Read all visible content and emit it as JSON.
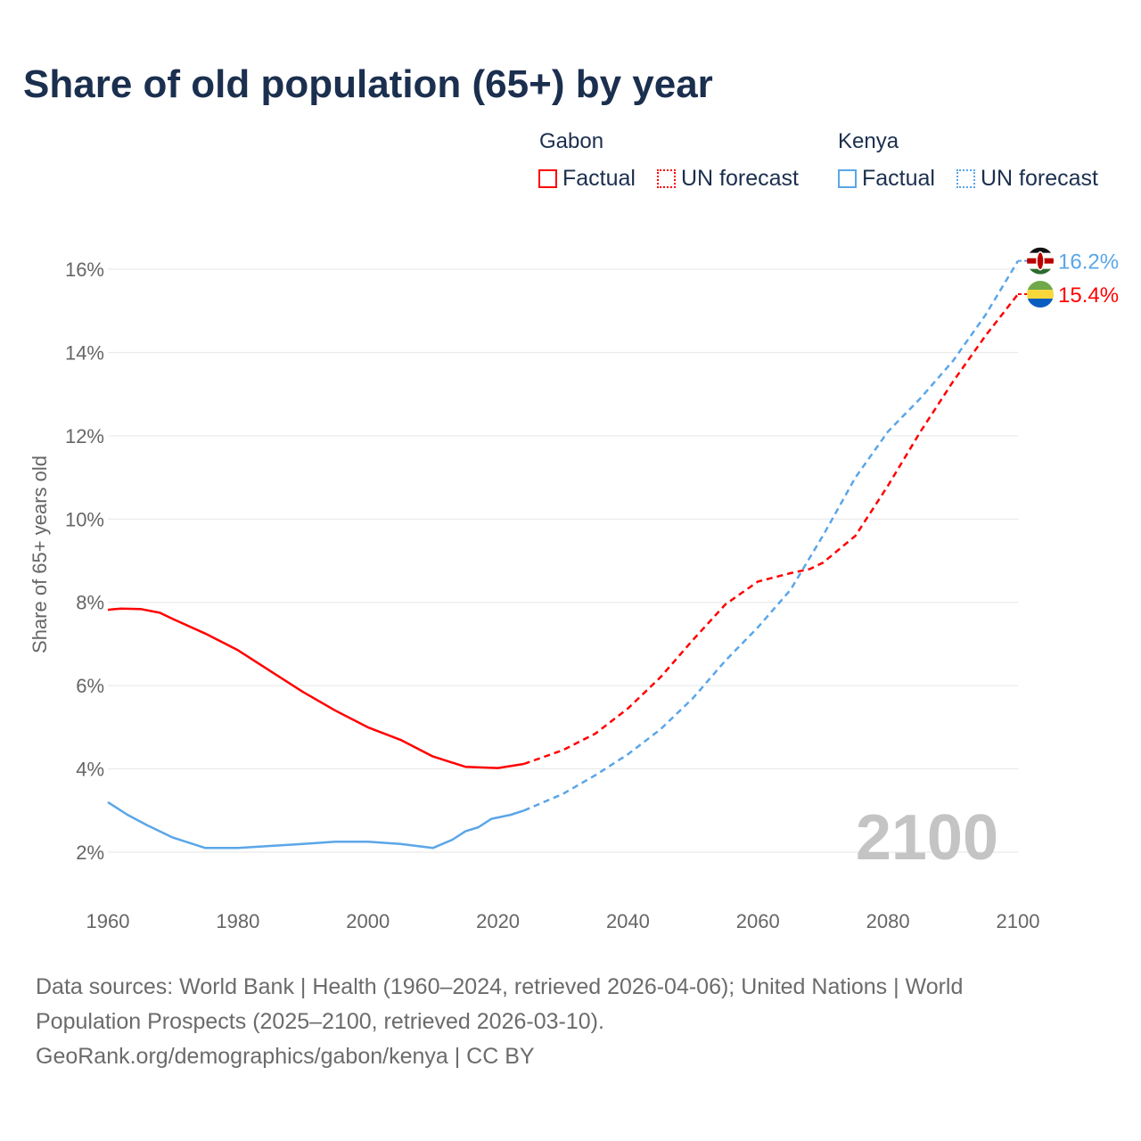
{
  "chart_data": {
    "type": "line",
    "title": "Share of old population (65+) by year",
    "ylabel": "Share of 65+ years old",
    "xlabel": "",
    "xlim": [
      1960,
      2100
    ],
    "ylim": [
      2,
      16
    ],
    "x_ticks": [
      1960,
      1980,
      2000,
      2020,
      2040,
      2060,
      2080,
      2100
    ],
    "y_ticks": [
      2,
      4,
      6,
      8,
      10,
      12,
      14,
      16
    ],
    "y_tick_labels": [
      "2%",
      "4%",
      "6%",
      "8%",
      "10%",
      "12%",
      "14%",
      "16%"
    ],
    "grid": true,
    "watermark_year": "2100",
    "legend": {
      "placement": "top-right",
      "groups": [
        {
          "country": "Gabon",
          "factual": "Factual",
          "forecast": "UN forecast",
          "color": "#ff0000"
        },
        {
          "country": "Kenya",
          "factual": "Factual",
          "forecast": "UN forecast",
          "color": "#5aa6e8"
        }
      ]
    },
    "series": [
      {
        "name": "Gabon",
        "color": "#ff0000",
        "end_label": "15.4%",
        "factual": {
          "x": [
            1960,
            1962,
            1965,
            1968,
            1970,
            1975,
            1980,
            1985,
            1990,
            1995,
            2000,
            2005,
            2010,
            2015,
            2020,
            2024
          ],
          "y": [
            7.82,
            7.85,
            7.84,
            7.75,
            7.6,
            7.25,
            6.85,
            6.35,
            5.85,
            5.4,
            5.0,
            4.7,
            4.3,
            4.05,
            4.02,
            4.12
          ]
        },
        "forecast": {
          "x": [
            2024,
            2030,
            2035,
            2040,
            2045,
            2050,
            2055,
            2060,
            2065,
            2068,
            2070,
            2075,
            2080,
            2085,
            2090,
            2095,
            2100
          ],
          "y": [
            4.12,
            4.45,
            4.85,
            5.45,
            6.2,
            7.1,
            7.95,
            8.5,
            8.7,
            8.8,
            8.95,
            9.6,
            10.8,
            12.1,
            13.3,
            14.4,
            15.4
          ]
        }
      },
      {
        "name": "Kenya",
        "color": "#5aa6e8",
        "end_label": "16.2%",
        "factual": {
          "x": [
            1960,
            1963,
            1966,
            1970,
            1975,
            1980,
            1985,
            1990,
            1995,
            2000,
            2005,
            2010,
            2013,
            2015,
            2017,
            2019,
            2022,
            2024
          ],
          "y": [
            3.2,
            2.9,
            2.65,
            2.35,
            2.1,
            2.1,
            2.15,
            2.2,
            2.25,
            2.25,
            2.2,
            2.1,
            2.3,
            2.5,
            2.6,
            2.8,
            2.9,
            3.0
          ]
        },
        "forecast": {
          "x": [
            2024,
            2030,
            2035,
            2040,
            2045,
            2050,
            2055,
            2060,
            2065,
            2070,
            2075,
            2080,
            2085,
            2090,
            2095,
            2100
          ],
          "y": [
            3.0,
            3.4,
            3.85,
            4.35,
            4.95,
            5.7,
            6.6,
            7.4,
            8.3,
            9.6,
            11.0,
            12.1,
            12.9,
            13.8,
            14.9,
            16.2
          ]
        }
      }
    ]
  },
  "footer": {
    "line1": "Data sources: World Bank | Health (1960–2024, retrieved 2026-04-06); United Nations | World",
    "line2": "Population Prospects (2025–2100, retrieved 2026-03-10).",
    "line3": "GeoRank.org/demographics/gabon/kenya | CC BY"
  }
}
